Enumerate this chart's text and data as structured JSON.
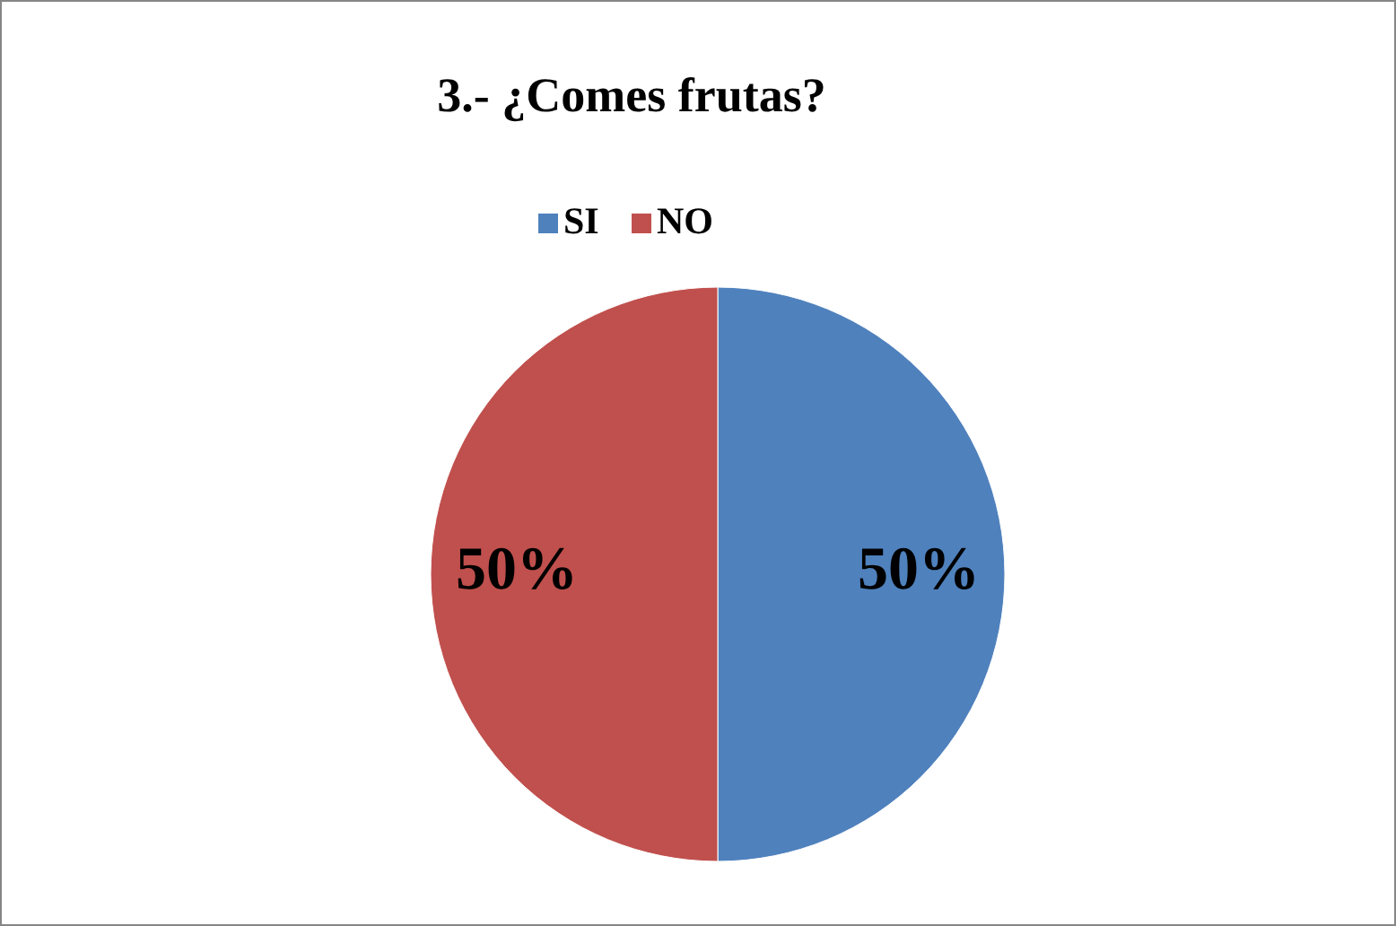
{
  "chart_data": {
    "type": "pie",
    "title": "3.- ¿Comes frutas?",
    "categories": [
      "SI",
      "NO"
    ],
    "values": [
      50,
      50
    ],
    "colors": [
      "#4f81bd",
      "#c0504d"
    ],
    "value_labels": [
      "50%",
      "50%"
    ],
    "legend": "top"
  }
}
